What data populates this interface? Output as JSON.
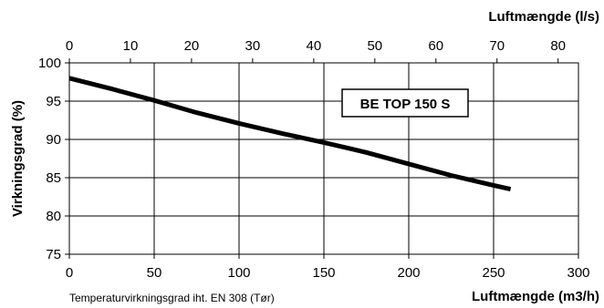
{
  "chart_data": {
    "type": "line",
    "xlabel": "Luftmængde (m3/h)",
    "x2label": "Luftmængde (l/s)",
    "ylabel": "Virkningsgrad (%)",
    "xlim": [
      0,
      300
    ],
    "x2lim": [
      0,
      83.33
    ],
    "ylim": [
      75,
      100
    ],
    "xticks": [
      "0",
      "50",
      "100",
      "150",
      "200",
      "250",
      "300"
    ],
    "x2ticks": [
      "0",
      "10",
      "20",
      "30",
      "40",
      "50",
      "60",
      "70",
      "80"
    ],
    "yticks": [
      "75",
      "80",
      "85",
      "90",
      "95",
      "100"
    ],
    "grid": true,
    "annotation": "BE TOP 150 S",
    "footnote": "Temperaturvirkningsgrad iht. EN 308 (Tør)",
    "series": [
      {
        "x": [
          0,
          25,
          50,
          75,
          100,
          125,
          150,
          175,
          200,
          225,
          250,
          260
        ],
        "y": [
          98.0,
          96.6,
          95.1,
          93.5,
          92.1,
          90.8,
          89.6,
          88.3,
          86.8,
          85.3,
          84.0,
          83.5
        ]
      }
    ],
    "line_color": "#000000"
  }
}
